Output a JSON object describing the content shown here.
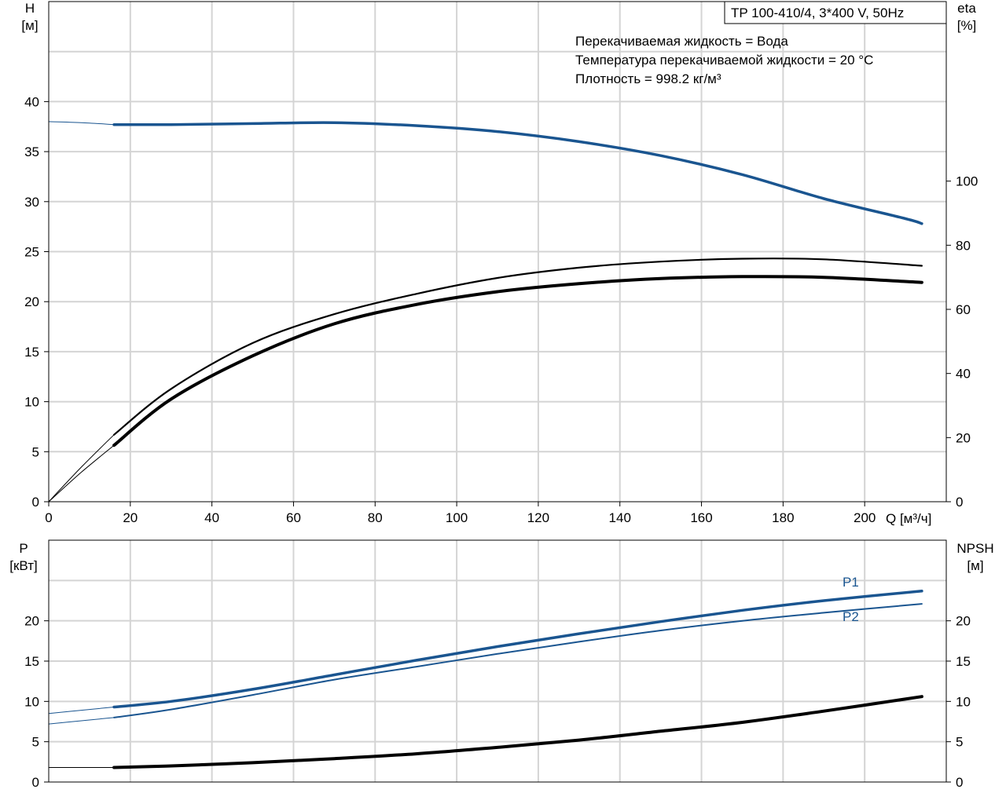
{
  "chart_data": [
    {
      "type": "line",
      "title": "TP 100-410/4, 3*400 V, 50Hz",
      "annotations": [
        "Перекачиваемая жидкость = Вода",
        "Температура перекачиваемой жидкости = 20 °C",
        "Плотность = 998.2 кг/м³"
      ],
      "xlabel": "Q [м³/ч]",
      "xlim": [
        0,
        220
      ],
      "xticks": [
        "0",
        "20",
        "40",
        "60",
        "80",
        "100",
        "120",
        "140",
        "160",
        "180",
        "200"
      ],
      "ylabel_left": [
        "H",
        "[м]"
      ],
      "ylim_left": [
        0,
        50
      ],
      "yticks_left": [
        "0",
        "5",
        "10",
        "15",
        "20",
        "25",
        "30",
        "35",
        "40"
      ],
      "ylabel_right": [
        "eta",
        "[%]"
      ],
      "ylim_right": [
        0,
        156
      ],
      "yticks_right": [
        "0",
        "20",
        "40",
        "60",
        "80",
        "100"
      ],
      "grid": true,
      "series": [
        {
          "key": "H",
          "axis": "left",
          "color": "#1a5590",
          "x": [
            16,
            30,
            50,
            70,
            90,
            110,
            130,
            150,
            170,
            190,
            210,
            214
          ],
          "y": [
            37.7,
            37.7,
            37.8,
            37.9,
            37.6,
            37.0,
            36.0,
            34.6,
            32.7,
            30.3,
            28.3,
            27.8
          ]
        },
        {
          "key": "H-ext",
          "axis": "left",
          "color": "#1a5590",
          "x": [
            0,
            8,
            16
          ],
          "y": [
            38.0,
            37.9,
            37.7
          ]
        },
        {
          "key": "eta1",
          "axis": "right",
          "color": "#000000",
          "x": [
            16,
            30,
            50,
            70,
            90,
            110,
            130,
            150,
            170,
            190,
            214
          ],
          "y": [
            17.6,
            32.0,
            45.5,
            55.5,
            61.5,
            65.5,
            68.0,
            69.6,
            70.2,
            70.0,
            68.4
          ]
        },
        {
          "key": "eta2",
          "axis": "right",
          "color": "#000000",
          "x": [
            16,
            30,
            50,
            70,
            90,
            110,
            130,
            150,
            170,
            190,
            214
          ],
          "y": [
            20.9,
            35.2,
            49.5,
            58.5,
            64.8,
            69.8,
            73.0,
            74.9,
            75.8,
            75.6,
            73.6
          ]
        },
        {
          "key": "eta-ext1",
          "axis": "right",
          "color": "#000000",
          "x": [
            0,
            8,
            16
          ],
          "y": [
            0,
            9.2,
            17.6
          ]
        },
        {
          "key": "eta-ext2",
          "axis": "right",
          "color": "#000000",
          "x": [
            0,
            8,
            16
          ],
          "y": [
            0,
            10.8,
            20.9
          ]
        }
      ]
    },
    {
      "type": "line",
      "xlim": [
        0,
        220
      ],
      "ylabel_left": [
        "P",
        "[кВт]"
      ],
      "ylim_left": [
        0,
        30
      ],
      "yticks_left": [
        "0",
        "5",
        "10",
        "15",
        "20"
      ],
      "ylabel_right": [
        "NPSH",
        "[м]"
      ],
      "ylim_right": [
        0,
        30
      ],
      "yticks_right": [
        "0",
        "5",
        "10",
        "15",
        "20"
      ],
      "grid": true,
      "series": [
        {
          "key": "P1",
          "name": "P1",
          "axis": "left",
          "color": "#1a5590",
          "x": [
            16,
            30,
            50,
            70,
            90,
            110,
            130,
            150,
            170,
            190,
            214
          ],
          "y": [
            9.3,
            10.0,
            11.5,
            13.3,
            15.1,
            16.8,
            18.4,
            19.9,
            21.3,
            22.5,
            23.7
          ]
        },
        {
          "key": "P2",
          "name": "P2",
          "axis": "left",
          "color": "#1a5590",
          "x": [
            16,
            30,
            50,
            70,
            90,
            110,
            130,
            150,
            170,
            190,
            214
          ],
          "y": [
            8.0,
            9.0,
            10.8,
            12.7,
            14.3,
            15.9,
            17.4,
            18.8,
            20.0,
            21.0,
            22.1
          ]
        },
        {
          "key": "P1-ext",
          "axis": "left",
          "color": "#1a5590",
          "x": [
            0,
            8,
            16
          ],
          "y": [
            8.5,
            8.9,
            9.3
          ]
        },
        {
          "key": "P2-ext",
          "axis": "left",
          "color": "#1a5590",
          "x": [
            0,
            8,
            16
          ],
          "y": [
            7.2,
            7.6,
            8.0
          ]
        },
        {
          "key": "NPSH",
          "axis": "right",
          "color": "#000000",
          "x": [
            16,
            30,
            50,
            70,
            90,
            110,
            130,
            150,
            170,
            190,
            214
          ],
          "y": [
            1.8,
            2.0,
            2.4,
            2.9,
            3.5,
            4.3,
            5.2,
            6.3,
            7.4,
            8.8,
            10.6
          ]
        },
        {
          "key": "NPSH-ext",
          "axis": "right",
          "color": "#000000",
          "x": [
            0,
            8,
            16
          ],
          "y": [
            1.8,
            1.8,
            1.8
          ]
        }
      ]
    }
  ]
}
